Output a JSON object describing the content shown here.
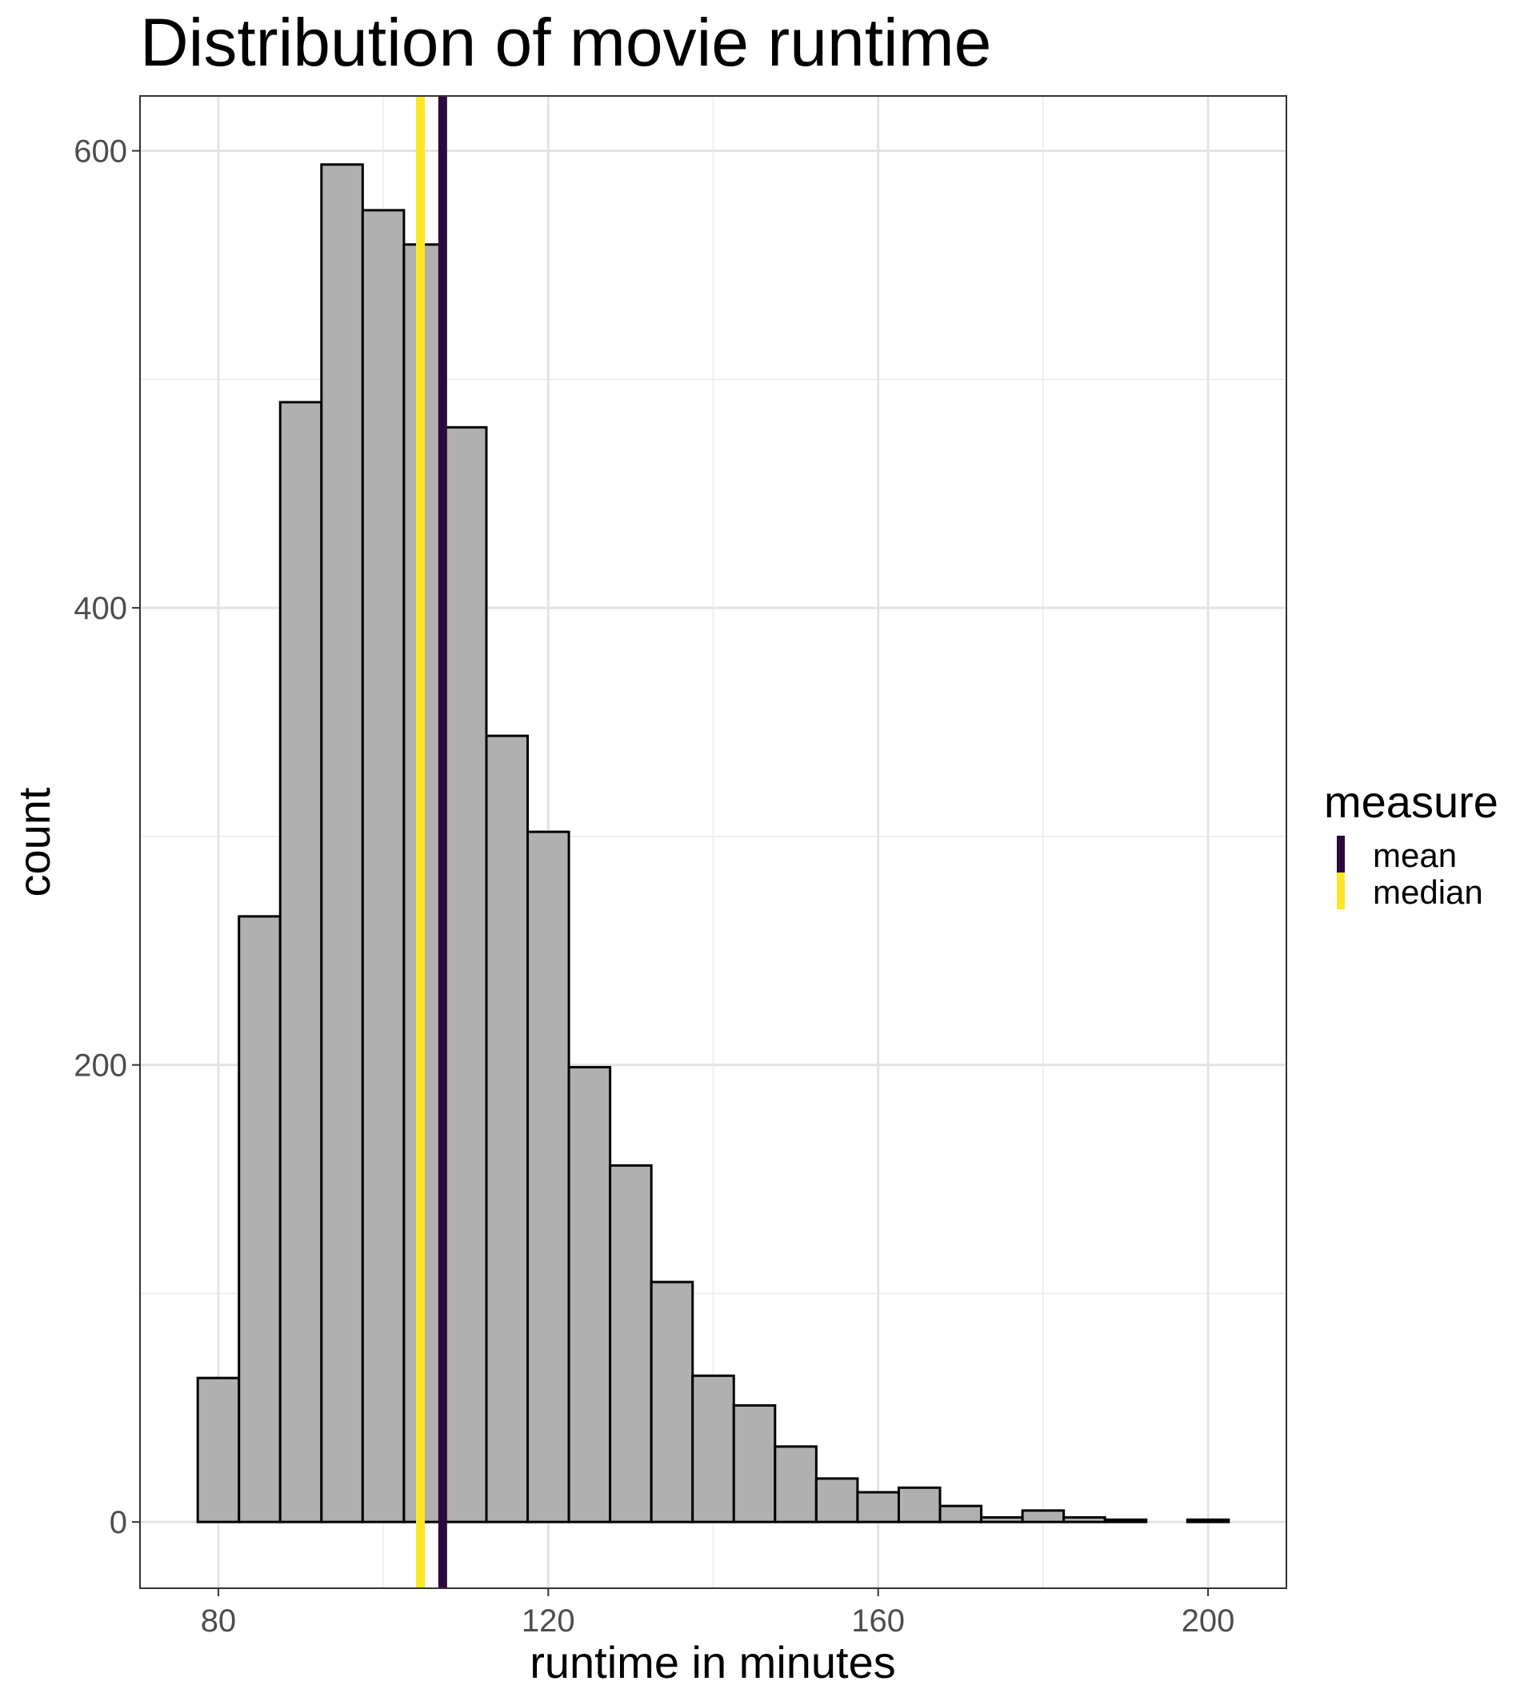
{
  "chart_data": {
    "type": "bar",
    "title": "Distribution of movie runtime",
    "xlabel": "runtime in minutes",
    "ylabel": "count",
    "xlim": [
      70.5,
      209.5
    ],
    "ylim": [
      -29,
      624
    ],
    "x_ticks": [
      80,
      120,
      160,
      200
    ],
    "y_ticks": [
      0,
      200,
      400,
      600
    ],
    "y_minor_ticks": [
      100,
      300,
      500
    ],
    "x_minor_ticks": [
      100,
      140,
      180
    ],
    "grid": true,
    "bin_width": 5,
    "bins": [
      {
        "start": 77.5,
        "end": 82.5,
        "count": 63
      },
      {
        "start": 82.5,
        "end": 87.5,
        "count": 265
      },
      {
        "start": 87.5,
        "end": 92.5,
        "count": 490
      },
      {
        "start": 92.5,
        "end": 97.5,
        "count": 594
      },
      {
        "start": 97.5,
        "end": 102.5,
        "count": 574
      },
      {
        "start": 102.5,
        "end": 107.5,
        "count": 559
      },
      {
        "start": 107.5,
        "end": 112.5,
        "count": 479
      },
      {
        "start": 112.5,
        "end": 117.5,
        "count": 344
      },
      {
        "start": 117.5,
        "end": 122.5,
        "count": 302
      },
      {
        "start": 122.5,
        "end": 127.5,
        "count": 199
      },
      {
        "start": 127.5,
        "end": 132.5,
        "count": 156
      },
      {
        "start": 132.5,
        "end": 137.5,
        "count": 105
      },
      {
        "start": 137.5,
        "end": 142.5,
        "count": 64
      },
      {
        "start": 142.5,
        "end": 147.5,
        "count": 51
      },
      {
        "start": 147.5,
        "end": 152.5,
        "count": 33
      },
      {
        "start": 152.5,
        "end": 157.5,
        "count": 19
      },
      {
        "start": 157.5,
        "end": 162.5,
        "count": 13
      },
      {
        "start": 162.5,
        "end": 167.5,
        "count": 15
      },
      {
        "start": 167.5,
        "end": 172.5,
        "count": 7
      },
      {
        "start": 172.5,
        "end": 177.5,
        "count": 2
      },
      {
        "start": 177.5,
        "end": 182.5,
        "count": 5
      },
      {
        "start": 182.5,
        "end": 187.5,
        "count": 2
      },
      {
        "start": 187.5,
        "end": 192.5,
        "count": 1
      },
      {
        "start": 192.5,
        "end": 197.5,
        "count": 0
      },
      {
        "start": 197.5,
        "end": 202.5,
        "count": 1
      }
    ],
    "bar_color": "#b0b0b0",
    "bar_outline": "#000000",
    "vlines": [
      {
        "name": "mean",
        "x": 107.2,
        "color": "#2d0a3e"
      },
      {
        "name": "median",
        "x": 104.5,
        "color": "#fde725"
      }
    ],
    "legend": {
      "title": "measure",
      "position": "right",
      "items": [
        {
          "label": "mean",
          "color": "#2d0a3e"
        },
        {
          "label": "median",
          "color": "#fde725"
        }
      ]
    }
  }
}
